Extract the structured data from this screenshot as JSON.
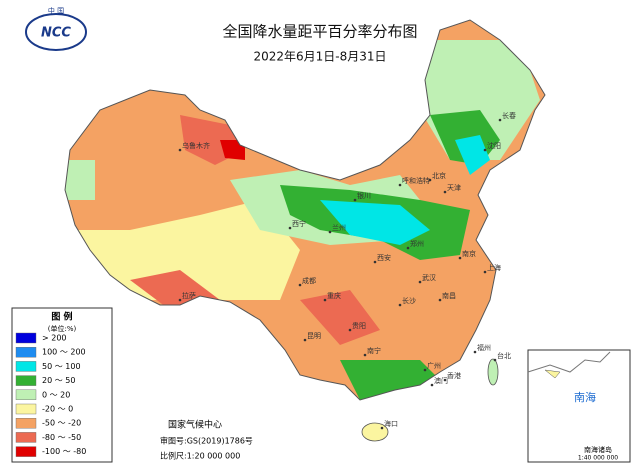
{
  "logo": {
    "org": "中 国",
    "text": "NCC"
  },
  "title": "全国降水量距平百分率分布图",
  "subtitle": "2022年6月1日-8月31日",
  "legend": {
    "title": "图 例",
    "unit": "(单位:%)",
    "items": [
      {
        "label": "> 200",
        "color": "#0000dd"
      },
      {
        "label": "100 ～ 200",
        "color": "#1e8cf0"
      },
      {
        "label": "50 ～ 100",
        "color": "#00e6e6"
      },
      {
        "label": "20 ～ 50",
        "color": "#33b033"
      },
      {
        "label": "0 ～ 20",
        "color": "#bff0b4"
      },
      {
        "label": "-20 ～ 0",
        "color": "#fbf5a0"
      },
      {
        "label": "-50 ～ -20",
        "color": "#f4a263"
      },
      {
        "label": "-80 ～ -50",
        "color": "#ec6a52"
      },
      {
        "label": "-100 ～ -80",
        "color": "#e00000"
      }
    ]
  },
  "footer": [
    "国家气候中心",
    "审图号:GS(2019)1786号",
    "比例尺:1:20 000 000"
  ],
  "cities": [
    "乌鲁木齐",
    "拉萨",
    "西宁",
    "兰州",
    "银川",
    "呼和浩特",
    "北京",
    "天津",
    "沈阳",
    "长春",
    "西安",
    "郑州",
    "成都",
    "重庆",
    "武汉",
    "长沙",
    "南昌",
    "福州",
    "台北",
    "广州",
    "香港",
    "澳门",
    "海口",
    "南宁",
    "贵阳",
    "昆明",
    "南京",
    "上海"
  ],
  "inset": {
    "sea": "南海",
    "label": "南海诸岛",
    "scale": "1:40 000 000"
  }
}
